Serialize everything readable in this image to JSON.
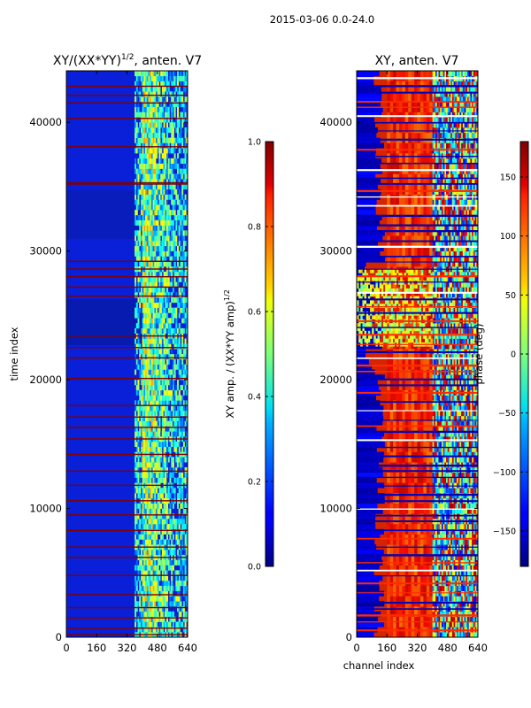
{
  "suptitle": "2015-03-06 0.0-24.0",
  "chart_data": [
    {
      "type": "heatmap",
      "title": "XY/(XX*YY)^{1/2}, anten. V7",
      "title_main": "XY/(XX*YY)",
      "title_exp": "1/2",
      "title_tail": ", anten. V7",
      "xlabel": "",
      "ylabel": "time index",
      "xlim": [
        0,
        640
      ],
      "ylim": [
        0,
        44000
      ],
      "xticks": [
        0,
        160,
        320,
        480,
        640
      ],
      "yticks": [
        0,
        10000,
        20000,
        30000,
        40000
      ],
      "colorbar": {
        "label_main": "XY amp. / (XX*YY amp)",
        "label_exp": "1/2",
        "range": [
          0.0,
          1.0
        ],
        "ticks": [
          "0.0",
          "0.2",
          "0.4",
          "0.6",
          "0.8",
          "1.0"
        ],
        "colormap": "jet"
      },
      "flagged_rows_value": 1.0,
      "flagged_rows": [
        200,
        700,
        1500,
        2300,
        3300,
        4800,
        6200,
        7000,
        8300,
        9500,
        10600,
        11800,
        12900,
        14200,
        15400,
        16300,
        17100,
        18000,
        20100,
        21700,
        22500,
        23400,
        26500,
        27200,
        28000,
        28600,
        29200,
        35200,
        35300,
        38100,
        40300,
        41500,
        42100,
        42800
      ]
    },
    {
      "type": "heatmap",
      "title": "XY, anten. V7",
      "xlabel": "channel index",
      "ylabel": "",
      "xlim": [
        0,
        640
      ],
      "ylim": [
        0,
        44000
      ],
      "xticks": [
        0,
        160,
        320,
        480,
        640
      ],
      "yticks": [
        0,
        10000,
        20000,
        30000,
        40000
      ],
      "colorbar": {
        "label": "phase (deg)",
        "range": [
          -180,
          180
        ],
        "ticks": [
          "150",
          "100",
          "50",
          "0",
          "−50",
          "−100",
          "−150"
        ],
        "tick_values": [
          150,
          100,
          50,
          0,
          -50,
          -100,
          -150
        ],
        "colormap": "jet"
      }
    }
  ]
}
